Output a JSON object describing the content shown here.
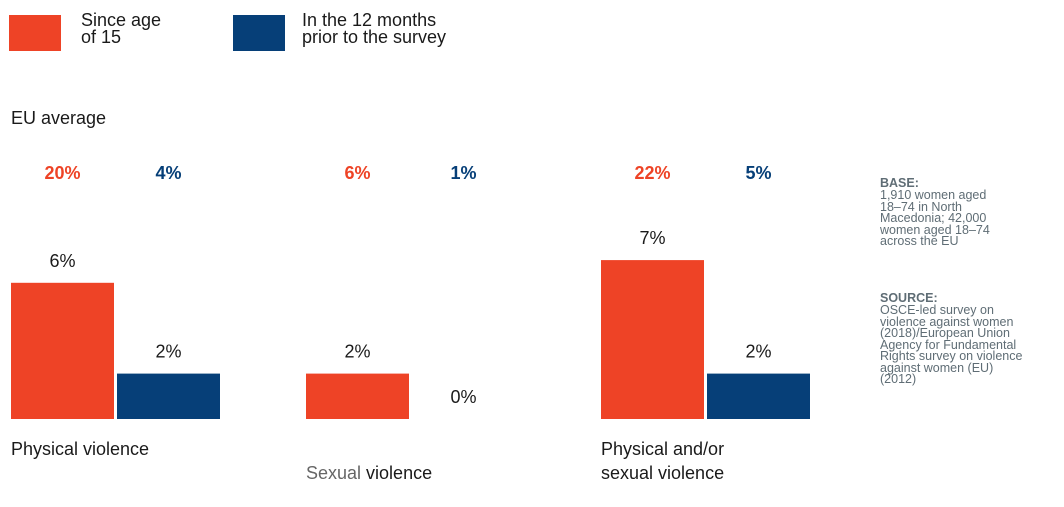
{
  "colors": {
    "since_15": "#ee4326",
    "last_12": "#063f78",
    "note_text": "#5f6d75",
    "sexual_word": "#666666"
  },
  "legend": [
    {
      "label": "Since age\nof 15",
      "color": "#ee4326"
    },
    {
      "label": "In the 12 months\nprior to the survey",
      "color": "#063f78"
    }
  ],
  "eu_average_label": "EU average",
  "notes": {
    "base_title": "BASE:",
    "base_text": "1,910 women aged\n18–74 in North\nMacedonia; 42,000\nwomen aged 18–74\nacross the EU",
    "source_title": "SOURCE:",
    "source_text": "OSCE-led survey on\nviolence against women\n(2018)/European Union\nAgency for Fundamental\nRights survey on violence\nagainst women (EU)\n(2012)"
  },
  "categories": {
    "physical": "Physical violence",
    "sexual_part1": "Sexual",
    "sexual_part2": " violence",
    "both": "Physical and/or\nsexual violence"
  },
  "chart_data": {
    "type": "bar",
    "categories": [
      "Physical violence",
      "Sexual violence",
      "Physical and/or sexual violence"
    ],
    "series": [
      {
        "name": "Since age of 15",
        "values": [
          6,
          2,
          7
        ],
        "labels": [
          "6%",
          "2%",
          "7%"
        ],
        "eu_average": [
          "20%",
          "6%",
          "22%"
        ]
      },
      {
        "name": "In the 12 months prior to the survey",
        "values": [
          2,
          0,
          2
        ],
        "labels": [
          "2%",
          "0%",
          "2%"
        ],
        "eu_average": [
          "4%",
          "1%",
          "5%"
        ]
      }
    ]
  }
}
